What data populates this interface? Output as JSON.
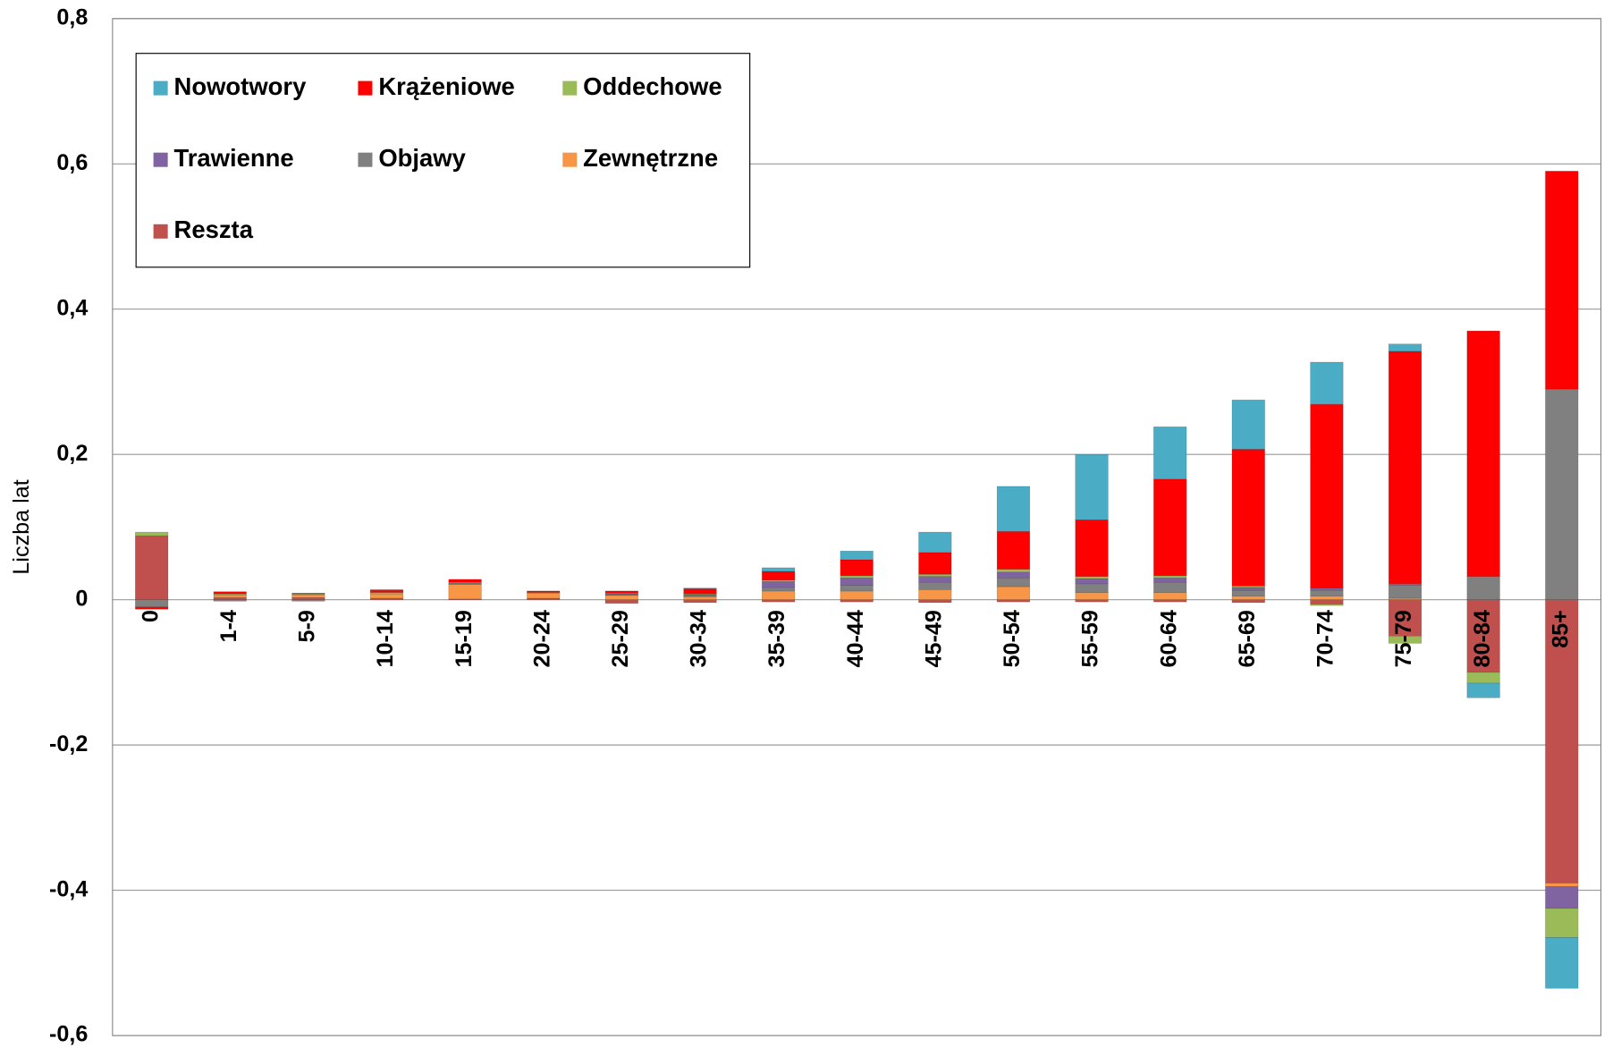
{
  "chart_data": {
    "type": "bar",
    "stacked": true,
    "y_label": "Liczba lat",
    "categories": [
      "0",
      "1-4",
      "5-9",
      "10-14",
      "15-19",
      "20-24",
      "25-29",
      "30-34",
      "35-39",
      "40-44",
      "45-49",
      "50-54",
      "55-59",
      "60-64",
      "65-69",
      "70-74",
      "75-79",
      "80-84",
      "85+"
    ],
    "series": [
      {
        "name": "Nowotwory",
        "color": "#4bacc6",
        "values": [
          0,
          0,
          0,
          0.001,
          0,
          0,
          0,
          0.001,
          0.005,
          0.012,
          0.028,
          0.062,
          0.09,
          0.072,
          0.068,
          0.058,
          0.01,
          -0.02,
          -0.07
        ]
      },
      {
        "name": "Krążeniowe",
        "color": "#ff0000",
        "values": [
          -0.003,
          0.003,
          0.001,
          0.003,
          0.004,
          0.002,
          0.003,
          0.007,
          0.012,
          0.022,
          0.03,
          0.052,
          0.078,
          0.133,
          0.188,
          0.253,
          0.32,
          0.338,
          0.3
        ]
      },
      {
        "name": "Oddechowe",
        "color": "#9bbb59",
        "values": [
          0.005,
          0.002,
          0.001,
          0.002,
          0.001,
          0.001,
          0.001,
          0.001,
          0.002,
          0.003,
          0.003,
          0.004,
          0.003,
          0.003,
          0.002,
          -0.002,
          -0.01,
          -0.015,
          -0.04
        ]
      },
      {
        "name": "Trawienne",
        "color": "#8064a2",
        "values": [
          0,
          0,
          0,
          0,
          0,
          0,
          0.001,
          0.001,
          0.008,
          0.01,
          0.008,
          0.008,
          0.007,
          0.006,
          0.004,
          0.003,
          0.002,
          0,
          -0.03
        ]
      },
      {
        "name": "Objawy",
        "color": "#808080",
        "values": [
          -0.01,
          -0.002,
          -0.002,
          0,
          0.002,
          0,
          0.001,
          0.002,
          0.005,
          0.008,
          0.01,
          0.012,
          0.012,
          0.014,
          0.008,
          0.008,
          0.018,
          0.032,
          0.29
        ]
      },
      {
        "name": "Zewnętrzne",
        "color": "#f79646",
        "values": [
          0,
          0.003,
          0.004,
          0.006,
          0.02,
          0.007,
          0.006,
          0.004,
          0.012,
          0.012,
          0.014,
          0.018,
          0.01,
          0.01,
          0.005,
          0.005,
          0.002,
          0,
          -0.005
        ]
      },
      {
        "name": "Reszta",
        "color": "#c0504d",
        "values": [
          0.088,
          0.003,
          0.003,
          0.002,
          0.001,
          0.002,
          -0.005,
          -0.004,
          -0.003,
          -0.003,
          -0.004,
          -0.003,
          -0.003,
          -0.003,
          -0.004,
          -0.006,
          -0.05,
          -0.1,
          -0.39
        ]
      }
    ],
    "ylim": [
      -0.6,
      0.8
    ],
    "yticks": [
      {
        "value": -0.6,
        "label": "-0,6"
      },
      {
        "value": -0.4,
        "label": "-0,4"
      },
      {
        "value": -0.2,
        "label": "-0,2"
      },
      0,
      {
        "value": 0.2,
        "label": "0,2"
      },
      {
        "value": 0.4,
        "label": "0,4"
      },
      {
        "value": 0.6,
        "label": "0,6"
      },
      {
        "value": 0.8,
        "label": "0,8"
      }
    ],
    "grid": true,
    "legend": "top-left"
  }
}
